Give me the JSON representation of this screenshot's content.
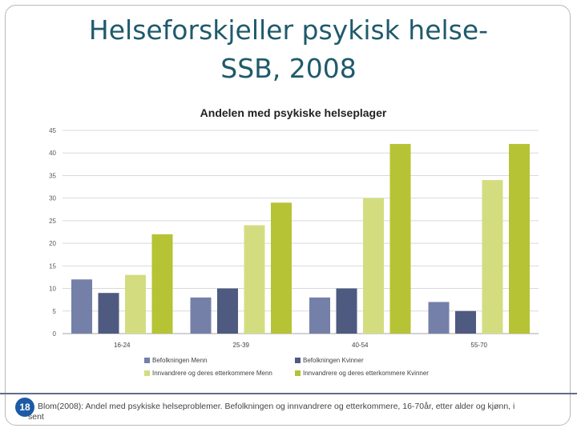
{
  "slide": {
    "title_line1": "Helseforskjeller psykisk helse-",
    "title_line2": "SSB, 2008",
    "page_number": "18",
    "footer_text": "Blom(2008): Andel med psykiske helseproblemer. Befolkningen og innvandrere og etterkommere, 16-70år, etter alder og kjønn, i",
    "footer_text_cont": "sent"
  },
  "chart_data": {
    "type": "bar",
    "title": "Andelen med psykiske helseplager",
    "categories": [
      "16-24",
      "25-39",
      "40-54",
      "55-70"
    ],
    "ylim": [
      0,
      45
    ],
    "yticks": [
      0,
      5,
      10,
      15,
      20,
      25,
      30,
      35,
      40,
      45
    ],
    "grid": true,
    "legend_position": "bottom",
    "series": [
      {
        "name": "Befolkningen Menn",
        "color": "#7480a8",
        "values": [
          12,
          8,
          8,
          7
        ]
      },
      {
        "name": "Befolkningen Kvinner",
        "color": "#4f5a80",
        "values": [
          9,
          10,
          10,
          5
        ]
      },
      {
        "name": "Innvandrere og deres etterkommere Menn",
        "color": "#d3dd80",
        "values": [
          13,
          24,
          30,
          34
        ]
      },
      {
        "name": "Innvandrere og deres etterkommere Kvinner",
        "color": "#b5c335",
        "values": [
          22,
          29,
          42,
          42
        ]
      }
    ]
  }
}
